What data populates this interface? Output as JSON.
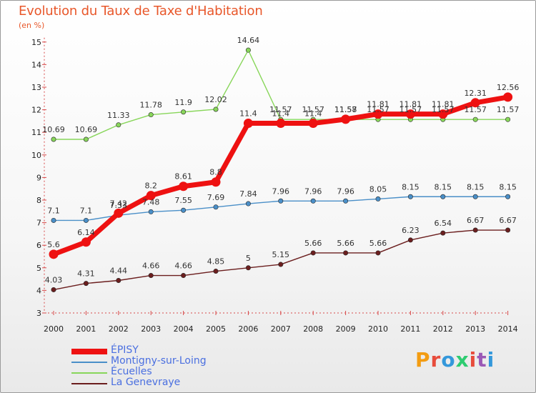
{
  "chart_data": {
    "type": "line",
    "title": "Evolution du Taux de Taxe d'Habitation",
    "subtitle": "(en %)",
    "xlabel": "",
    "ylabel": "",
    "x": [
      "2000",
      "2001",
      "2002",
      "2003",
      "2004",
      "2005",
      "2006",
      "2007",
      "2008",
      "2009",
      "2010",
      "2011",
      "2012",
      "2013",
      "2014"
    ],
    "ylim": [
      3,
      15
    ],
    "yticks": [
      "3",
      "4",
      "5",
      "6",
      "7",
      "8",
      "9",
      "10",
      "11",
      "12",
      "13",
      "14",
      "15"
    ],
    "grid": false,
    "legend_position": "bottom-left",
    "series": [
      {
        "name": "ÉPISY",
        "color": "#ee1111",
        "values": [
          5.6,
          6.14,
          7.42,
          8.2,
          8.61,
          8.8,
          11.4,
          11.4,
          11.4,
          11.58,
          11.81,
          11.81,
          11.81,
          12.31,
          12.56
        ],
        "labels": [
          "5.6",
          "6.14",
          "7.42",
          "8.2",
          "8.61",
          "8.8",
          "11.4",
          "11.4",
          "11.4",
          "11.58",
          "11.81",
          "11.81",
          "11.81",
          "12.31",
          "12.56"
        ]
      },
      {
        "name": "Montigny-sur-Loing",
        "color": "#4a8fc8",
        "values": [
          7.1,
          7.1,
          7.33,
          7.48,
          7.55,
          7.69,
          7.84,
          7.96,
          7.96,
          7.96,
          8.05,
          8.15,
          8.15,
          8.15,
          8.15
        ],
        "labels": [
          "7.1",
          "7.1",
          "7.33",
          "7.48",
          "7.55",
          "7.69",
          "7.84",
          "7.96",
          "7.96",
          "7.96",
          "8.05",
          "8.15",
          "8.15",
          "8.15",
          "8.15"
        ]
      },
      {
        "name": "Écuelles",
        "color": "#88d65a",
        "values": [
          10.69,
          10.69,
          11.33,
          11.78,
          11.9,
          12.02,
          14.64,
          11.57,
          11.57,
          11.57,
          11.57,
          11.57,
          11.57,
          11.57,
          11.57
        ],
        "labels": [
          "10.69",
          "10.69",
          "11.33",
          "11.78",
          "11.9",
          "12.02",
          "14.64",
          "11.57",
          "11.57",
          "11.57",
          "11.57",
          "11.57",
          "11.57",
          "11.57",
          "11.57"
        ]
      },
      {
        "name": "La Genevraye",
        "color": "#6b1e1e",
        "values": [
          4.03,
          4.31,
          4.44,
          4.66,
          4.66,
          4.85,
          5,
          5.15,
          5.66,
          5.66,
          5.66,
          6.23,
          6.54,
          6.67,
          6.67
        ],
        "labels": [
          "4.03",
          "4.31",
          "4.44",
          "4.66",
          "4.66",
          "4.85",
          "5",
          "5.15",
          "5.66",
          "5.66",
          "5.66",
          "6.23",
          "6.54",
          "6.67",
          "6.67"
        ]
      }
    ]
  },
  "brand": {
    "name": "Proxiti",
    "letters": [
      "P",
      "r",
      "o",
      "x",
      "i",
      "t",
      "i"
    ],
    "colors": [
      "#f39c12",
      "#e74c3c",
      "#3498db",
      "#2ecc71",
      "#e74c3c",
      "#9b59b6",
      "#3498db"
    ]
  }
}
